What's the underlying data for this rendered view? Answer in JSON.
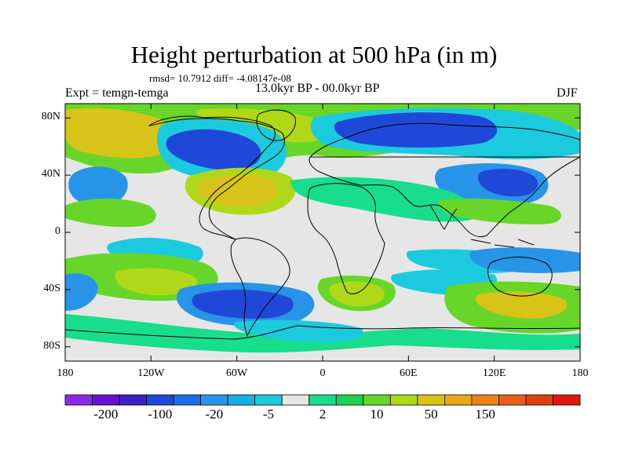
{
  "header": {
    "title": "Height perturbation at 500 hPa (in m)",
    "stats": "rmsd= 10.7912 diff= -4.08147e-08",
    "experiment": "Expt = temgn-temga",
    "period": "13.0kyr BP - 00.0kyr BP",
    "season": "DJF"
  },
  "axes": {
    "lat_labels": [
      "80N",
      "40N",
      "0",
      "40S",
      "80S"
    ],
    "lat_values": [
      80,
      40,
      0,
      -40,
      -80
    ],
    "lon_labels": [
      "180",
      "120W",
      "60W",
      "0",
      "60E",
      "120E",
      "180"
    ],
    "lon_values": [
      -180,
      -120,
      -60,
      0,
      60,
      120,
      180
    ]
  },
  "colorbar": {
    "labels": [
      "-200",
      "-100",
      "-20",
      "-5",
      "2",
      "10",
      "50",
      "150"
    ],
    "colors": [
      "#8a2be2",
      "#6a0fd6",
      "#3a22c8",
      "#2048d8",
      "#1870e8",
      "#2894e8",
      "#18b0e0",
      "#1ccade",
      "#e6e6e6",
      "#18dd8c",
      "#20d050",
      "#68d628",
      "#b0d818",
      "#d8c418",
      "#e8a818",
      "#e88418",
      "#e86018",
      "#e04010",
      "#e01810"
    ],
    "label_boxes": [
      1,
      3,
      5,
      7,
      9,
      11,
      13,
      15
    ]
  },
  "field_colors": {
    "neutral": "#e6e6e6",
    "pos_weak": "#18dd8c",
    "pos_mid": "#68d628",
    "pos_strong": "#b0d818",
    "pos_high": "#d8c418",
    "neg_weak": "#1ccade",
    "neg_mid": "#2894e8",
    "neg_strong": "#1870e8",
    "neg_high": "#2048d8"
  }
}
